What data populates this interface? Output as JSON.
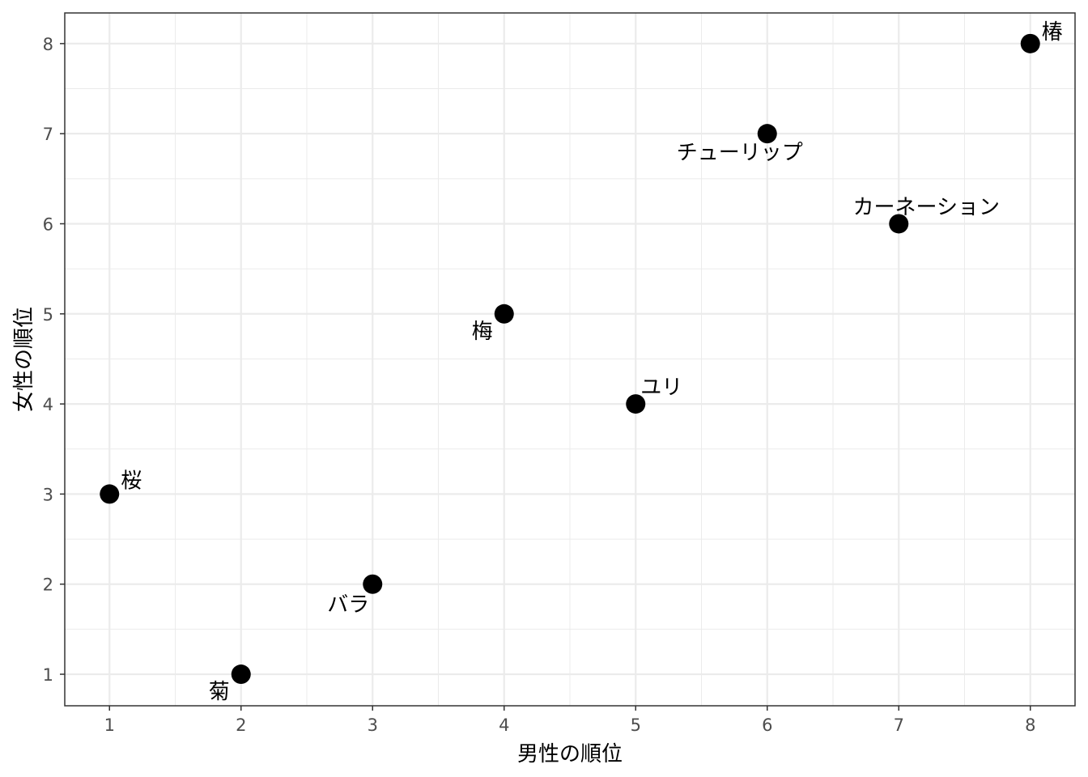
{
  "chart_data": {
    "type": "scatter",
    "title": "",
    "xlabel": "男性の順位",
    "ylabel": "女性の順位",
    "xlim": [
      0.66,
      8.34
    ],
    "ylim": [
      0.65,
      8.34
    ],
    "x_ticks": [
      "1",
      "2",
      "3",
      "4",
      "5",
      "6",
      "7",
      "8"
    ],
    "y_ticks": [
      "1",
      "2",
      "3",
      "4",
      "5",
      "6",
      "7",
      "8"
    ],
    "grid": true,
    "legend": "none",
    "colors": {
      "point": "#000000",
      "grid": "#ebebeb",
      "panel_border": "#333333",
      "background": "#ffffff"
    },
    "points": [
      {
        "label": "桜",
        "x": 1,
        "y": 3
      },
      {
        "label": "菊",
        "x": 2,
        "y": 1
      },
      {
        "label": "バラ",
        "x": 3,
        "y": 2
      },
      {
        "label": "梅",
        "x": 4,
        "y": 5
      },
      {
        "label": "ユリ",
        "x": 5,
        "y": 4
      },
      {
        "label": "チューリップ",
        "x": 6,
        "y": 7
      },
      {
        "label": "カーネーション",
        "x": 7,
        "y": 6
      },
      {
        "label": "椿",
        "x": 8,
        "y": 8
      }
    ]
  }
}
